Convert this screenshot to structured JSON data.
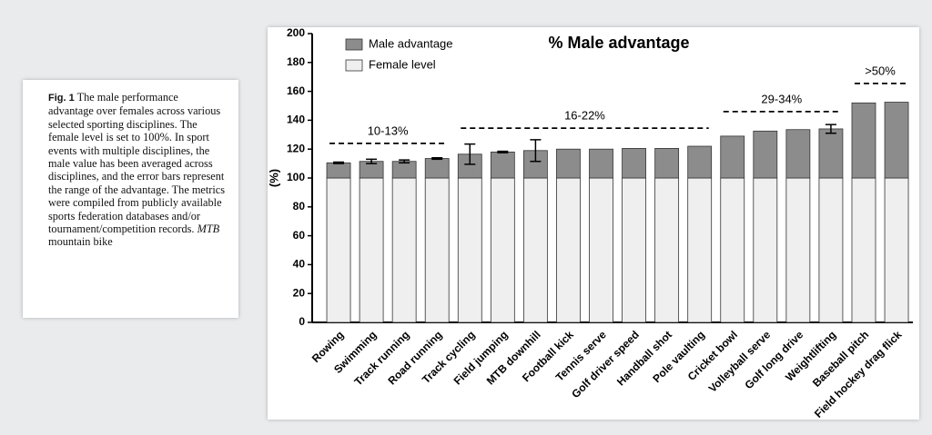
{
  "caption": {
    "label": "Fig. 1",
    "text": "The male performance advantage over females across various selected sporting disciplines. The female level is set to 100%. In sport events with multiple disciplines, the male value has been averaged across disciplines, and the error bars represent the range of the advantage. The metrics were compiled from publicly available sports federation databases and/or tournament/competition records.",
    "abbr": "MTB",
    "abbr_text": "mountain bike"
  },
  "chart_data": {
    "type": "stacked_bar",
    "title": "% Male advantage",
    "y_label": "(%)",
    "categories": [
      "Rowing",
      "Swimming",
      "Track running",
      "Road running",
      "Track cycling",
      "Field jumping",
      "MTB downhill",
      "Football kick",
      "Tennis serve",
      "Golf driver speed",
      "Handball shot",
      "Pole vaulting",
      "Cricket bowl",
      "Volleyball serve",
      "Golf long drive",
      "Weightlifting",
      "Baseball pitch",
      "Field hockey drag flick"
    ],
    "series": [
      {
        "name": "Female level",
        "color": "#efefef",
        "values": [
          100,
          100,
          100,
          100,
          100,
          100,
          100,
          100,
          100,
          100,
          100,
          100,
          100,
          100,
          100,
          100,
          100,
          100
        ]
      },
      {
        "name": "Male advantage",
        "color": "#8c8c8c",
        "values": [
          10.5,
          11.5,
          11.5,
          13.5,
          16.5,
          18,
          19,
          20,
          20,
          20.5,
          20.5,
          22,
          29,
          32.5,
          33.5,
          34,
          52,
          52.5
        ],
        "errors": [
          0.5,
          1.5,
          1,
          0.5,
          7,
          0.5,
          7.5,
          null,
          null,
          null,
          null,
          null,
          null,
          null,
          null,
          3,
          null,
          null
        ]
      }
    ],
    "annotations": [
      {
        "text": "10-13%"
      },
      {
        "text": "16-22%"
      },
      {
        "text": "29-34%"
      },
      {
        "text": ">50%"
      }
    ],
    "ylim": [
      0,
      200
    ],
    "yticks": [
      0,
      20,
      40,
      60,
      80,
      100,
      120,
      140,
      160,
      180,
      200
    ],
    "grid": false,
    "legend": "upper left"
  }
}
